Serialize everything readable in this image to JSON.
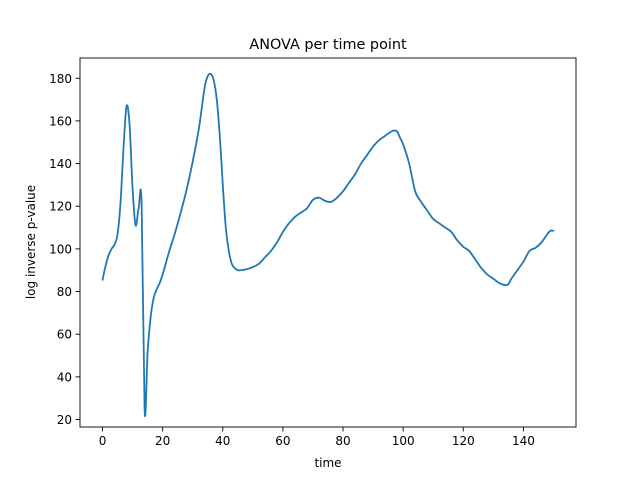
{
  "chart_data": {
    "type": "line",
    "title": "ANOVA per time point",
    "xlabel": "time",
    "ylabel": "log inverse p-value",
    "xlim": [
      -7.5,
      157.5
    ],
    "ylim": [
      16.5,
      189.5
    ],
    "xticks": [
      0,
      20,
      40,
      60,
      80,
      100,
      120,
      140
    ],
    "yticks": [
      20,
      40,
      60,
      80,
      100,
      120,
      140,
      160,
      180
    ],
    "grid": false,
    "line_color": "#1f77b4",
    "series": [
      {
        "x": [
          0,
          1,
          2,
          3,
          4,
          5,
          6,
          7,
          8,
          9,
          10,
          11,
          12,
          13,
          14,
          15,
          16,
          17,
          18,
          19,
          20,
          22,
          24,
          26,
          28,
          30,
          32,
          33,
          34,
          35,
          36,
          37,
          38,
          39,
          40,
          41,
          42,
          43,
          44,
          45,
          46,
          48,
          50,
          52,
          54,
          56,
          58,
          60,
          62,
          64,
          66,
          68,
          70,
          72,
          74,
          76,
          78,
          80,
          82,
          84,
          86,
          88,
          90,
          92,
          94,
          96,
          97,
          98,
          99,
          100,
          102,
          104,
          106,
          108,
          110,
          112,
          114,
          116,
          118,
          120,
          122,
          124,
          126,
          128,
          130,
          132,
          134,
          135,
          136,
          138,
          140,
          142,
          144,
          146,
          148,
          149,
          150
        ],
        "y": [
          85.5,
          92,
          97,
          100,
          102,
          107,
          122,
          148,
          167,
          158,
          128,
          111,
          119,
          121,
          24,
          52,
          68,
          77,
          81,
          84,
          88,
          98,
          107,
          117,
          128,
          141,
          156,
          166,
          176,
          181,
          182,
          179,
          170,
          153,
          130,
          110,
          99,
          93,
          91,
          90,
          90,
          90.5,
          91.5,
          93,
          96,
          99,
          103,
          108,
          112,
          115,
          117,
          119,
          123,
          124,
          122.5,
          122,
          124,
          127,
          131,
          135,
          140,
          144,
          148,
          151,
          153,
          155,
          155.5,
          155,
          152,
          149,
          140,
          127,
          122,
          118,
          114,
          112,
          110,
          108,
          104,
          101,
          99,
          95,
          91,
          88,
          86,
          84,
          83,
          83.5,
          86,
          90,
          94,
          99,
          100.5,
          103,
          107,
          108.5,
          108.5
        ]
      }
    ]
  }
}
